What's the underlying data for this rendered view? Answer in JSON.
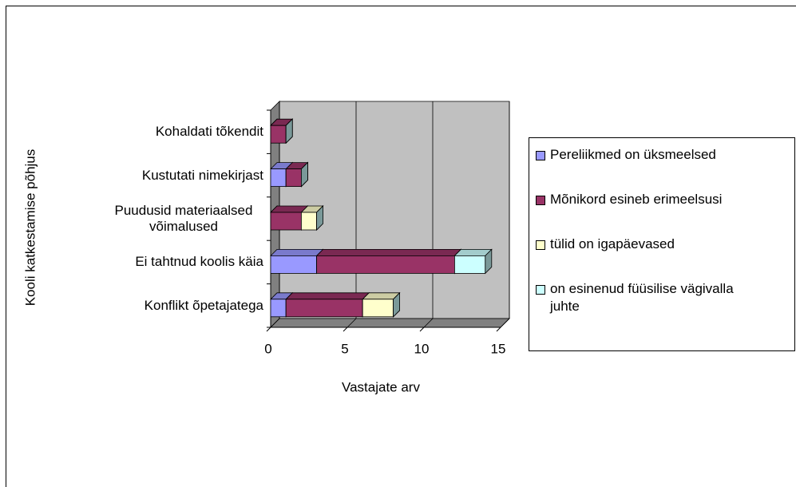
{
  "chart_data": {
    "type": "stacked-bar-3d",
    "x_label": "Vastajate arv",
    "y_label": "Kooli katkestamise põhjus",
    "categories": [
      "Konflikt õpetajatega",
      "Ei tahtnud koolis käia",
      "Puudusid materiaalsed võimalused",
      "Kustutati nimekirjast",
      "Kohaldati tõkendit"
    ],
    "series": [
      {
        "name": "Pereliikmed on üksmeelsed",
        "color": "#9999ff",
        "values": [
          1,
          3,
          0,
          1,
          0
        ]
      },
      {
        "name": "Mõnikord esineb erimeelsusi",
        "color": "#993366",
        "values": [
          5,
          9,
          2,
          1,
          1
        ]
      },
      {
        "name": "tülid on igapäevased",
        "color": "#ffffcc",
        "values": [
          2,
          0,
          1,
          0,
          0
        ]
      },
      {
        "name": "on esinenud füüsilise vägivalla juhte",
        "color": "#ccffff",
        "values": [
          0,
          2,
          0,
          0,
          0
        ]
      }
    ],
    "xlim": [
      0,
      15
    ],
    "xticks": [
      0,
      5,
      10,
      15
    ],
    "grid": true,
    "legend": "right"
  }
}
